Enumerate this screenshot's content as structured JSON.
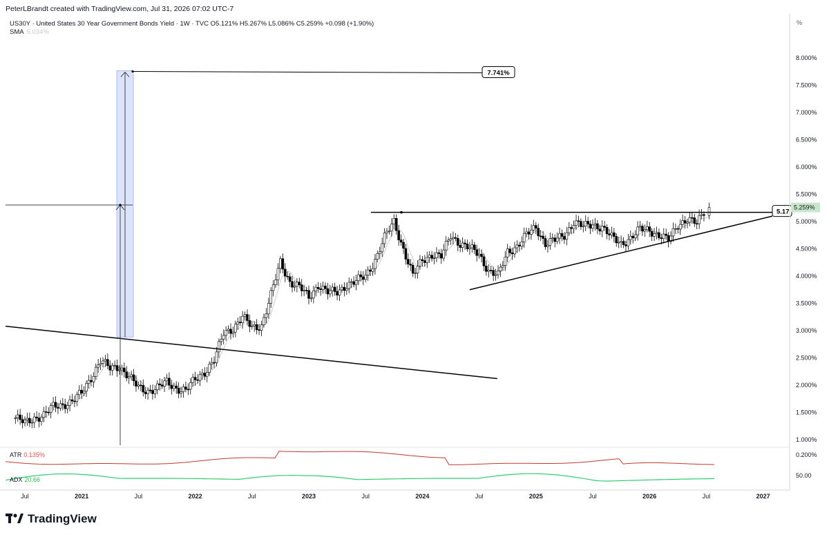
{
  "header": {
    "credit": "PeterLBrandt created with TradingView.com, Jul 31, 2026 07:02 UTC-7",
    "symbol_line": "US30Y · United States 30 Year Government Bonds Yield · 1W · TVC   O5.121%  H5.267%  L5.086%  C5.259%  +0.098 (+1.90%)",
    "sma_label": "SMA",
    "sma_value": "5.034%",
    "unit": "%"
  },
  "indicators": {
    "atr_label": "ATR",
    "atr_value": "0.135%",
    "adx_label": "ADX",
    "adx_value": "20.66",
    "atr_axis_label": "0.200%",
    "adx_axis_label": "50.00"
  },
  "brand": {
    "name": "TradingView"
  },
  "colors": {
    "up_candle": "#ffffff",
    "down_candle": "#000000",
    "sma_line": "#c9c9c9",
    "atr_line": "#c0392b",
    "adx_line": "#2ecc71",
    "projection_fill": "#dbe4fb",
    "last_price_bg": "#c8e6c9"
  },
  "chart_data": {
    "type": "candlestick",
    "title": "US30Y · United States 30 Year Government Bonds Yield · 1W · TVC",
    "ylabel": "%",
    "ylim": [
      1.0,
      8.0
    ],
    "y_ticks": [
      "1.000%",
      "1.500%",
      "2.000%",
      "2.500%",
      "3.000%",
      "3.500%",
      "4.000%",
      "4.500%",
      "5.000%",
      "5.500%",
      "6.000%",
      "6.500%",
      "7.000%",
      "7.500%",
      "8.000%"
    ],
    "x_ticks": [
      "Jul",
      "2021",
      "Jul",
      "2022",
      "Jul",
      "2023",
      "Jul",
      "2024",
      "Jul",
      "2025",
      "Jul",
      "2026",
      "Jul",
      "2027"
    ],
    "series": [
      {
        "name": "US30Y",
        "points": [
          [
            "2020-06",
            1.4
          ],
          [
            "2020-07",
            1.3
          ],
          [
            "2020-08",
            1.4
          ],
          [
            "2020-09",
            1.45
          ],
          [
            "2020-10",
            1.6
          ],
          [
            "2020-11",
            1.65
          ],
          [
            "2020-12",
            1.7
          ],
          [
            "2021-01",
            1.85
          ],
          [
            "2021-02",
            2.15
          ],
          [
            "2021-03",
            2.45
          ],
          [
            "2021-04",
            2.3
          ],
          [
            "2021-05",
            2.35
          ],
          [
            "2021-06",
            2.15
          ],
          [
            "2021-07",
            1.95
          ],
          [
            "2021-08",
            1.9
          ],
          [
            "2021-09",
            1.95
          ],
          [
            "2021-10",
            2.05
          ],
          [
            "2021-11",
            1.95
          ],
          [
            "2021-12",
            1.9
          ],
          [
            "2022-01",
            2.1
          ],
          [
            "2022-02",
            2.25
          ],
          [
            "2022-03",
            2.45
          ],
          [
            "2022-04",
            2.95
          ],
          [
            "2022-05",
            3.05
          ],
          [
            "2022-06",
            3.25
          ],
          [
            "2022-07",
            3.05
          ],
          [
            "2022-08",
            3.1
          ],
          [
            "2022-09",
            3.65
          ],
          [
            "2022-10",
            4.25
          ],
          [
            "2022-11",
            3.9
          ],
          [
            "2022-12",
            3.8
          ],
          [
            "2023-01",
            3.6
          ],
          [
            "2023-02",
            3.85
          ],
          [
            "2023-03",
            3.7
          ],
          [
            "2023-04",
            3.7
          ],
          [
            "2023-05",
            3.85
          ],
          [
            "2023-06",
            3.9
          ],
          [
            "2023-07",
            4.0
          ],
          [
            "2023-08",
            4.3
          ],
          [
            "2023-09",
            4.7
          ],
          [
            "2023-10",
            5.0
          ],
          [
            "2023-11",
            4.5
          ],
          [
            "2023-12",
            4.0
          ],
          [
            "2024-01",
            4.3
          ],
          [
            "2024-02",
            4.4
          ],
          [
            "2024-03",
            4.35
          ],
          [
            "2024-04",
            4.75
          ],
          [
            "2024-05",
            4.6
          ],
          [
            "2024-06",
            4.5
          ],
          [
            "2024-07",
            4.4
          ],
          [
            "2024-08",
            4.1
          ],
          [
            "2024-09",
            4.0
          ],
          [
            "2024-10",
            4.45
          ],
          [
            "2024-11",
            4.55
          ],
          [
            "2024-12",
            4.75
          ],
          [
            "2025-01",
            4.9
          ],
          [
            "2025-02",
            4.6
          ],
          [
            "2025-03",
            4.65
          ],
          [
            "2025-04",
            4.75
          ],
          [
            "2025-05",
            5.0
          ],
          [
            "2025-06",
            4.9
          ],
          [
            "2025-07",
            4.95
          ],
          [
            "2025-08",
            4.9
          ],
          [
            "2025-09",
            4.7
          ],
          [
            "2025-10",
            4.6
          ],
          [
            "2025-11",
            4.7
          ],
          [
            "2025-12",
            4.85
          ],
          [
            "2026-01",
            4.85
          ],
          [
            "2026-02",
            4.75
          ],
          [
            "2026-03",
            4.65
          ],
          [
            "2026-04",
            4.95
          ],
          [
            "2026-05",
            5.05
          ],
          [
            "2026-06",
            4.95
          ],
          [
            "2026-07",
            5.26
          ]
        ]
      },
      {
        "name": "SMA",
        "values": "smoothed moving average of close"
      }
    ],
    "annotations": [
      {
        "type": "horizontal_resistance",
        "y": 5.17,
        "x_start": "2023-08",
        "x_end": "2026-08"
      },
      {
        "type": "rising_trendline",
        "from": [
          "2024-06",
          3.75
        ],
        "to": [
          "2026-09",
          5.1
        ]
      },
      {
        "type": "descending_trendline",
        "from": [
          "2020-06",
          3.08
        ],
        "to": [
          "2024-06",
          2.12
        ]
      },
      {
        "type": "price_target",
        "label": "7.741%",
        "y": 7.741,
        "x": "2021-05"
      },
      {
        "type": "measured_move",
        "from_y": 2.88,
        "to_y": 7.741
      }
    ],
    "last_price_label": "5.259%",
    "line_price_label": "5.17"
  }
}
